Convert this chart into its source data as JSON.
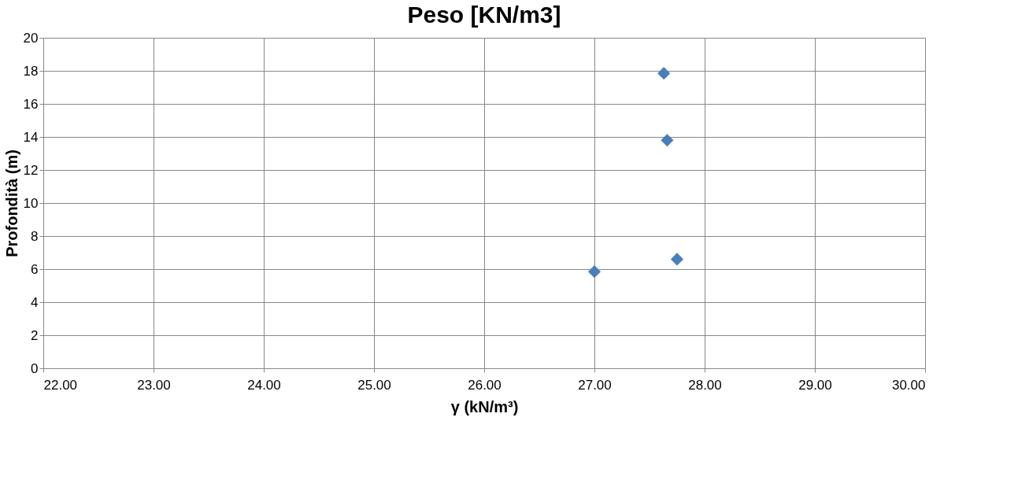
{
  "chart_data": {
    "type": "scatter",
    "title": "Peso [KN/m3]",
    "xlabel": "γ (kN/m³)",
    "ylabel": "Profondità (m)",
    "x": [
      27.63,
      27.66,
      27.75,
      27.0
    ],
    "series": [
      {
        "color": "#4a7ebb",
        "values": [
          17.85,
          13.8,
          6.6,
          5.85
        ]
      }
    ],
    "xlim": [
      22,
      30
    ],
    "xticks": [
      {
        "value": 22,
        "label": "22.00"
      },
      {
        "value": 23,
        "label": "23.00"
      },
      {
        "value": 24,
        "label": "24.00"
      },
      {
        "value": 25,
        "label": "25.00"
      },
      {
        "value": 26,
        "label": "26.00"
      },
      {
        "value": 27,
        "label": "27.00"
      },
      {
        "value": 28,
        "label": "28.00"
      },
      {
        "value": 29,
        "label": "29.00"
      },
      {
        "value": 30,
        "label": "30.00"
      }
    ],
    "ylim": [
      0,
      20
    ],
    "yticks": [
      0,
      2,
      4,
      6,
      8,
      10,
      12,
      14,
      16,
      18,
      20
    ],
    "grid": true,
    "marker": "diamond"
  }
}
